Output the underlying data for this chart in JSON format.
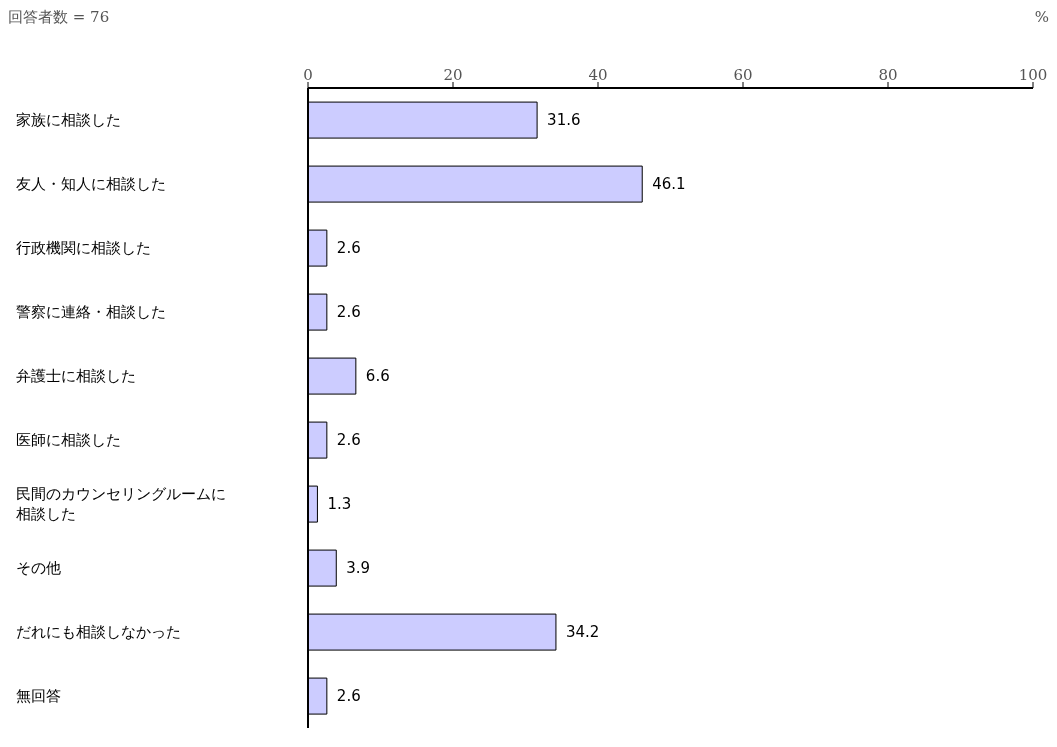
{
  "chart_data": {
    "type": "bar",
    "orientation": "horizontal",
    "categories": [
      "家族に相談した",
      "友人・知人に相談した",
      "行政機関に相談した",
      "警察に連絡・相談した",
      "弁護士に相談した",
      "医師に相談した",
      "民間のカウンセリングルームに相談した",
      "その他",
      "だれにも相談しなかった",
      "無回答"
    ],
    "values": [
      31.6,
      46.1,
      2.6,
      2.6,
      6.6,
      2.6,
      1.3,
      3.9,
      34.2,
      2.6
    ],
    "color": "#ccccff",
    "xlim": [
      0,
      100
    ],
    "xticks": [
      0,
      20,
      40,
      60,
      80,
      100
    ],
    "xlabel": "%",
    "annotations": [
      "回答者数 = 76"
    ],
    "data_labels": true,
    "grid": false,
    "legend": false
  }
}
